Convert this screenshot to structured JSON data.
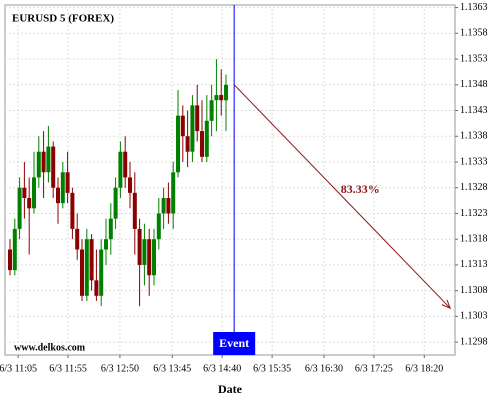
{
  "chart_data": {
    "type": "candlestick",
    "title": "EURUSD 5 (FOREX)",
    "watermark": "www.delkos.com",
    "x_label": "Date",
    "up_color": "#008000",
    "down_color": "#8b0000",
    "grid": true,
    "open": [
      1.1316,
      1.1312,
      1.132,
      1.1328,
      1.1326,
      1.1324,
      1.133,
      1.1335,
      1.1331,
      1.1336,
      1.1328,
      1.1325,
      1.1331,
      1.1327,
      1.132,
      1.1316,
      1.1307,
      1.1318,
      1.131,
      1.1307,
      1.1316,
      1.1318,
      1.1322,
      1.1328,
      1.1335,
      1.133,
      1.1327,
      1.132,
      1.1313,
      1.1318,
      1.1311,
      1.1318,
      1.1323,
      1.1326,
      1.1323,
      1.1331,
      1.1342,
      1.1338,
      1.1335,
      1.1344,
      1.1339,
      1.1334,
      1.1341,
      1.1345,
      1.1346,
      1.1345
    ],
    "high": [
      1.1318,
      1.1322,
      1.133,
      1.1333,
      1.133,
      1.1335,
      1.1338,
      1.1339,
      1.134,
      1.1337,
      1.133,
      1.1333,
      1.1335,
      1.1328,
      1.1323,
      1.1318,
      1.132,
      1.1319,
      1.1316,
      1.1318,
      1.1322,
      1.1325,
      1.133,
      1.1337,
      1.1338,
      1.1333,
      1.1331,
      1.1322,
      1.1321,
      1.132,
      1.132,
      1.1326,
      1.1328,
      1.1329,
      1.1333,
      1.1347,
      1.1344,
      1.1343,
      1.1346,
      1.1348,
      1.1345,
      1.1346,
      1.1348,
      1.1353,
      1.1351,
      1.135
    ],
    "low": [
      1.1311,
      1.1311,
      1.1318,
      1.1322,
      1.1315,
      1.1323,
      1.1328,
      1.1326,
      1.1329,
      1.1326,
      1.1321,
      1.1324,
      1.1325,
      1.1318,
      1.1314,
      1.1306,
      1.1306,
      1.1308,
      1.1306,
      1.1305,
      1.1313,
      1.1315,
      1.132,
      1.1326,
      1.1328,
      1.1324,
      1.1315,
      1.1305,
      1.1309,
      1.1307,
      1.1309,
      1.1316,
      1.132,
      1.1321,
      1.132,
      1.133,
      1.1333,
      1.1332,
      1.1333,
      1.1337,
      1.1333,
      1.1333,
      1.1338,
      1.1339,
      1.1342,
      1.1339
    ],
    "close": [
      1.1312,
      1.132,
      1.1328,
      1.1326,
      1.1324,
      1.133,
      1.1335,
      1.1331,
      1.1336,
      1.1328,
      1.1325,
      1.1331,
      1.1327,
      1.132,
      1.1316,
      1.1307,
      1.1318,
      1.131,
      1.1307,
      1.1316,
      1.1318,
      1.1322,
      1.1328,
      1.1335,
      1.133,
      1.1327,
      1.132,
      1.1313,
      1.1318,
      1.1311,
      1.1318,
      1.1323,
      1.1326,
      1.1323,
      1.1331,
      1.1342,
      1.1338,
      1.1335,
      1.1344,
      1.1339,
      1.1334,
      1.1341,
      1.1345,
      1.1346,
      1.1345,
      1.1348
    ],
    "xlim": [
      -1.04,
      92.7
    ],
    "xticks": [
      {
        "value": 1.7,
        "label": "6/3 11:05"
      },
      {
        "value": 12.1,
        "label": "6/3 11:55"
      },
      {
        "value": 22.9,
        "label": "6/3 12:50"
      },
      {
        "value": 33.8,
        "label": "6/3 13:45"
      },
      {
        "value": 44.2,
        "label": "6/3 14:40"
      },
      {
        "value": 54.6,
        "label": "6/3 15:35"
      },
      {
        "value": 65.4,
        "label": "6/3 16:30"
      },
      {
        "value": 75.8,
        "label": "6/3 17:25"
      },
      {
        "value": 86.3,
        "label": "6/3 18:20"
      }
    ],
    "ylim": [
      1.12955,
      1.13635
    ],
    "yticks": [
      1.1298,
      1.1303,
      1.1308,
      1.1313,
      1.1318,
      1.1323,
      1.1328,
      1.1333,
      1.1338,
      1.1343,
      1.1348,
      1.1353,
      1.1358,
      1.1363
    ],
    "event": {
      "label": "Event",
      "x": 46.7,
      "color": "#0000ff"
    },
    "prediction": {
      "label": "83.33%",
      "x": [
        46.7,
        91.7
      ],
      "y": [
        1.1348,
        1.13046
      ],
      "color": "#8b1a1a"
    }
  }
}
